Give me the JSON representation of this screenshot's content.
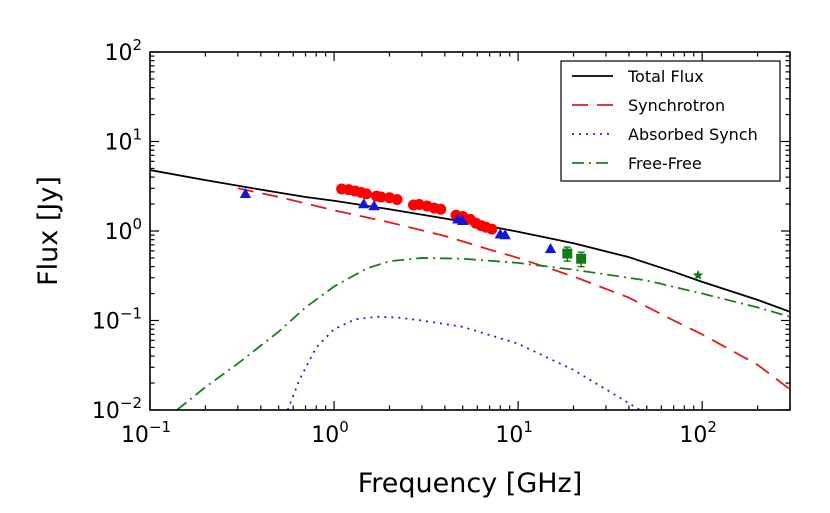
{
  "chart_data": {
    "type": "line",
    "xscale": "log",
    "yscale": "log",
    "xlim": [
      0.1,
      300
    ],
    "ylim": [
      0.01,
      100
    ],
    "xlabel": "Frequency [GHz]",
    "ylabel": "Flux [Jy]",
    "grid": false,
    "legend_position": "top-right",
    "x_ticks": [
      {
        "base": "10",
        "exp": "−1",
        "value": 0.1
      },
      {
        "base": "10",
        "exp": "0",
        "value": 1
      },
      {
        "base": "10",
        "exp": "1",
        "value": 10
      },
      {
        "base": "10",
        "exp": "2",
        "value": 100
      }
    ],
    "y_ticks": [
      {
        "base": "10",
        "exp": "−2",
        "value": 0.01
      },
      {
        "base": "10",
        "exp": "−1",
        "value": 0.1
      },
      {
        "base": "10",
        "exp": "0",
        "value": 1
      },
      {
        "base": "10",
        "exp": "1",
        "value": 10
      },
      {
        "base": "10",
        "exp": "2",
        "value": 100
      }
    ],
    "series": [
      {
        "name": "Total Flux",
        "color": "#000000",
        "dash": "",
        "x": [
          0.1,
          0.2,
          0.4,
          0.7,
          1.0,
          2.0,
          4.0,
          7.0,
          10.0,
          20.0,
          40.0,
          70.0,
          100.0,
          200.0,
          300.0
        ],
        "y": [
          4.8,
          3.7,
          2.9,
          2.4,
          2.18,
          1.75,
          1.38,
          1.13,
          0.98,
          0.73,
          0.51,
          0.35,
          0.27,
          0.17,
          0.125
        ]
      },
      {
        "name": "Synchrotron",
        "color": "#e31a1c",
        "dash": "16,9",
        "x": [
          0.3,
          0.5,
          1.0,
          2.0,
          4.0,
          7.0,
          10.0,
          20.0,
          40.0,
          70.0,
          100.0,
          200.0,
          300.0
        ],
        "y": [
          3.0,
          2.4,
          1.7,
          1.25,
          0.88,
          0.62,
          0.5,
          0.31,
          0.18,
          0.1,
          0.07,
          0.032,
          0.017
        ]
      },
      {
        "name": "Absorbed Synch",
        "color": "#1f1fe6",
        "dash": "2,5",
        "x": [
          0.56,
          0.65,
          0.8,
          1.0,
          1.3,
          1.7,
          2.2,
          3.0,
          5.0,
          10.0,
          20.0,
          30.0,
          46.0
        ],
        "y": [
          0.01,
          0.022,
          0.05,
          0.08,
          0.103,
          0.11,
          0.108,
          0.1,
          0.085,
          0.055,
          0.028,
          0.017,
          0.01
        ]
      },
      {
        "name": "Free-Free",
        "color": "#1a7f1a",
        "dash": "12,5,2,5",
        "x": [
          0.14,
          0.2,
          0.3,
          0.5,
          0.7,
          1.0,
          1.5,
          2.0,
          3.0,
          5.0,
          10.0,
          20.0,
          50.0,
          100.0,
          200.0,
          300.0
        ],
        "y": [
          0.01,
          0.018,
          0.033,
          0.075,
          0.14,
          0.24,
          0.38,
          0.46,
          0.5,
          0.49,
          0.44,
          0.37,
          0.28,
          0.2,
          0.14,
          0.11
        ]
      }
    ],
    "markers": [
      {
        "name": "red-circles",
        "shape": "circle",
        "color": "#ff0000",
        "x": [
          1.1,
          1.2,
          1.3,
          1.4,
          1.5,
          1.7,
          1.8,
          2.0,
          2.2,
          2.7,
          2.9,
          3.2,
          3.5,
          3.8,
          4.6,
          5.0,
          5.5,
          5.9,
          6.3,
          6.7,
          7.2
        ],
        "y": [
          2.95,
          2.9,
          2.8,
          2.7,
          2.6,
          2.45,
          2.4,
          2.35,
          2.25,
          1.95,
          1.98,
          1.9,
          1.8,
          1.75,
          1.5,
          1.45,
          1.35,
          1.22,
          1.15,
          1.1,
          1.05
        ]
      },
      {
        "name": "blue-triangles",
        "shape": "triangle",
        "color": "#1515d8",
        "x": [
          0.33,
          1.45,
          1.65,
          4.7,
          5.0,
          8.0,
          8.5,
          15.0
        ],
        "y": [
          2.6,
          2.0,
          1.9,
          1.35,
          1.3,
          0.92,
          0.9,
          0.63
        ]
      },
      {
        "name": "green-squares",
        "shape": "square",
        "color": "#157a15",
        "x": [
          18.5,
          22.0
        ],
        "y": [
          0.56,
          0.49
        ],
        "yerr": [
          0.1,
          0.09
        ]
      },
      {
        "name": "green-stars",
        "shape": "star",
        "color": "#157a15",
        "x": [
          95.0
        ],
        "y": [
          0.32
        ]
      }
    ]
  }
}
